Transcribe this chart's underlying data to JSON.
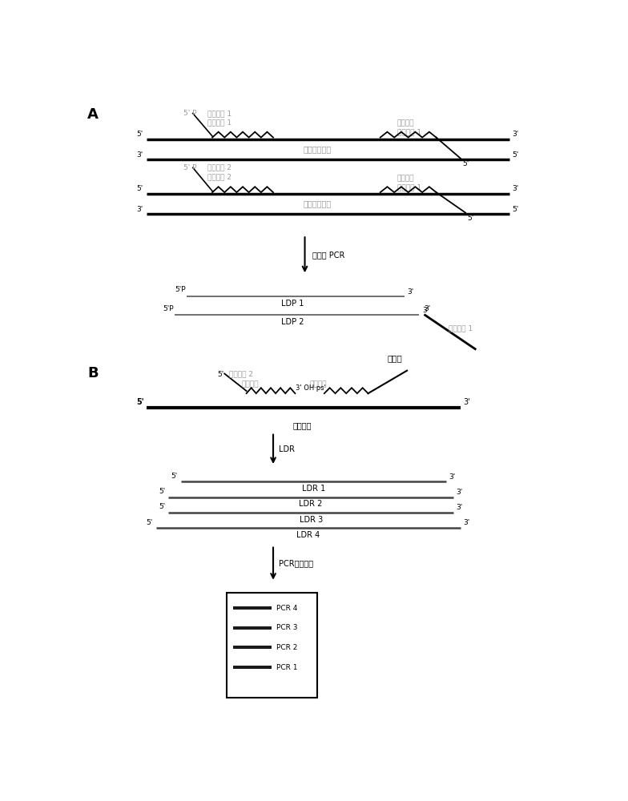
{
  "bg_color": "#ffffff",
  "gray_color": "#999999",
  "fig_width": 7.84,
  "fig_height": 10.0,
  "section_A_label": "A",
  "section_B_label": "B",
  "asymmetric_pcr_label": "不对称 PCR",
  "full_match_label": "完全配对",
  "ldr_label": "LDR",
  "pcr_amplify_label": "PCR扩增检测",
  "labels": {
    "downstream_probe1": "下游探针 1",
    "upstream_primer1": "上游引物 1",
    "subjective_template": "主观选择模板",
    "downstream_probe2": "下游探针 2",
    "forward_primer2": "正向引物 2",
    "reverse_primer": "反向引物",
    "universal_tag1": "通用标签 1",
    "universal_tag2": "通用标签 2",
    "upstream_probe": "上游探针",
    "downstream_probe": "下游探针",
    "filler": "填充物",
    "ldp1": "LDP 1",
    "ldp2": "LDP 2",
    "ldr1": "LDR 1",
    "ldr2": "LDR 2",
    "ldr3": "LDR 3",
    "ldr4": "LDR 4",
    "pcr1": "PCR 1",
    "pcr2": "PCR 2",
    "pcr3": "PCR 3",
    "pcr4": "PCR 4"
  }
}
